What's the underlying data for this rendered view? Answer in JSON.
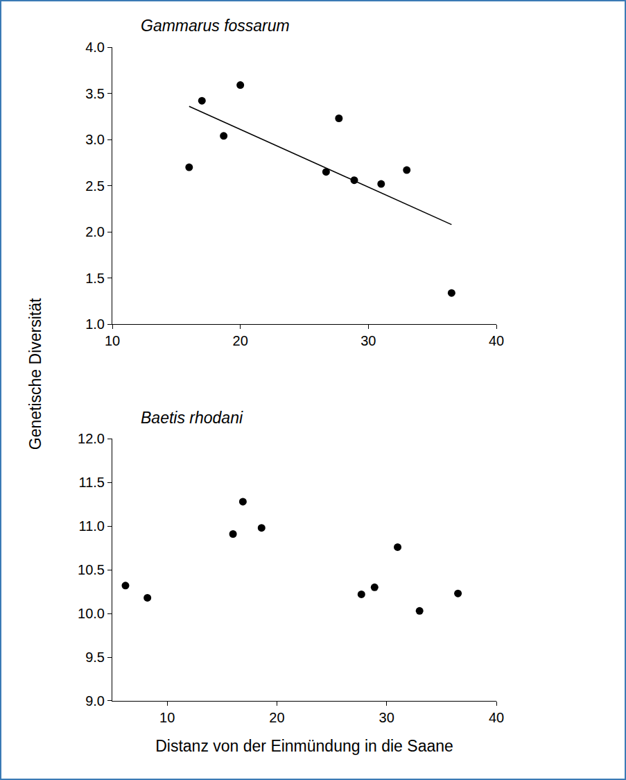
{
  "chart_data": [
    {
      "type": "scatter",
      "title": "Gammarus fossarum",
      "ylabel": "Genetische Diversität",
      "xlim": [
        10,
        40
      ],
      "xticks": [
        10,
        20,
        30,
        40
      ],
      "ylim": [
        1,
        4
      ],
      "yticks": [
        {
          "value": 1,
          "label": "1.0"
        },
        1.5,
        {
          "value": 2,
          "label": "2.0"
        },
        2.5,
        {
          "value": 3,
          "label": "3.0"
        },
        3.5,
        {
          "value": 4,
          "label": "4.0"
        }
      ],
      "grid": false,
      "series": [
        {
          "type": "scatter",
          "marker": "circle",
          "color": "#000000",
          "x": [
            16,
            17,
            18.7,
            20,
            26.7,
            27.7,
            28.9,
            31,
            33,
            36.5
          ],
          "values": [
            2.7,
            3.42,
            3.04,
            3.59,
            2.65,
            3.23,
            2.56,
            2.52,
            2.67,
            1.34
          ]
        },
        {
          "type": "line",
          "line_style": "solid",
          "color": "#000000",
          "x": [
            16,
            36.5
          ],
          "values": [
            3.36,
            2.08
          ]
        }
      ]
    },
    {
      "type": "scatter",
      "title": "Baetis rhodani",
      "xlabel": "Distanz von der Einmündung in die Saane",
      "xlim": [
        5,
        40
      ],
      "xticks": [
        10,
        20,
        30,
        40
      ],
      "ylim": [
        9,
        12
      ],
      "yticks": [
        {
          "value": 9,
          "label": "9.0"
        },
        9.5,
        {
          "value": 10,
          "label": "10.0"
        },
        10.5,
        {
          "value": 11,
          "label": "11.0"
        },
        11.5,
        {
          "value": 12,
          "label": "12.0"
        }
      ],
      "grid": false,
      "series": [
        {
          "type": "scatter",
          "marker": "circle",
          "color": "#000000",
          "x": [
            6.2,
            8.2,
            16,
            16.9,
            18.6,
            27.7,
            28.9,
            31,
            33,
            36.5
          ],
          "values": [
            10.32,
            10.18,
            10.91,
            11.28,
            10.98,
            10.22,
            10.3,
            10.76,
            10.03,
            10.23
          ]
        }
      ]
    }
  ]
}
